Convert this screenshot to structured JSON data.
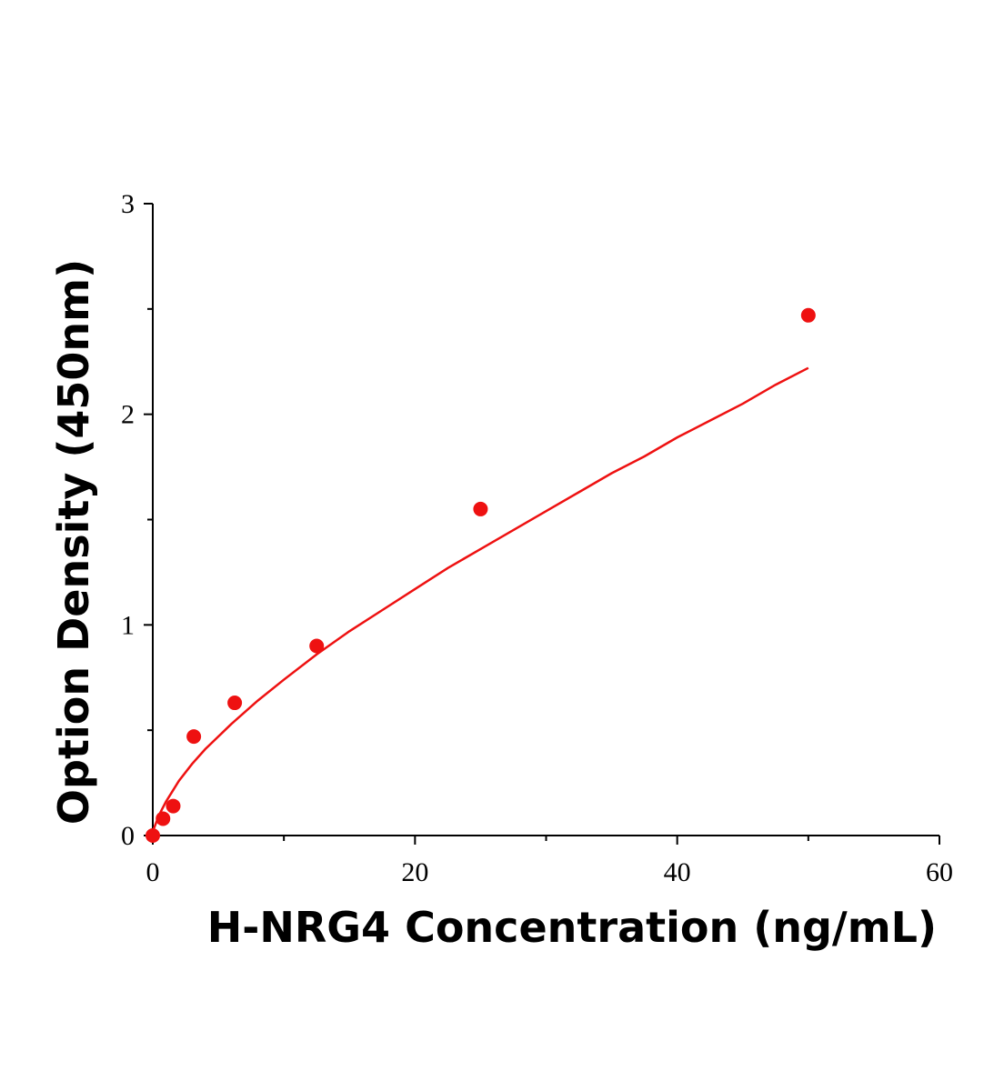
{
  "chart_data": {
    "type": "scatter",
    "title": "",
    "xlabel": "H-NRG4 Concentration (ng/mL)",
    "ylabel": "Option Density (450nm)",
    "xlim": [
      0,
      60
    ],
    "ylim": [
      0,
      3
    ],
    "x_ticks": [
      "0",
      "20",
      "40",
      "60"
    ],
    "y_ticks": [
      "0",
      "1",
      "2",
      "3"
    ],
    "grid": false,
    "legend": "none",
    "color": "#ee1111",
    "series": [
      {
        "x": [
          0,
          0.78,
          1.56,
          3.13,
          6.25,
          12.5,
          25,
          50
        ],
        "y": [
          0.0,
          0.08,
          0.14,
          0.47,
          0.63,
          0.9,
          1.55,
          2.47
        ]
      }
    ],
    "fit_curve": {
      "x": [
        0,
        0.5,
        1,
        2,
        3,
        4,
        5,
        6,
        8,
        10,
        12.5,
        15,
        17.5,
        20,
        22.5,
        25,
        27.5,
        30,
        32.5,
        35,
        37.5,
        40,
        42.5,
        45,
        47.5,
        50
      ],
      "y": [
        0.02,
        0.1,
        0.16,
        0.26,
        0.34,
        0.41,
        0.47,
        0.53,
        0.64,
        0.74,
        0.86,
        0.97,
        1.07,
        1.17,
        1.27,
        1.36,
        1.45,
        1.54,
        1.63,
        1.72,
        1.8,
        1.89,
        1.97,
        2.05,
        2.14,
        2.22
      ]
    }
  }
}
